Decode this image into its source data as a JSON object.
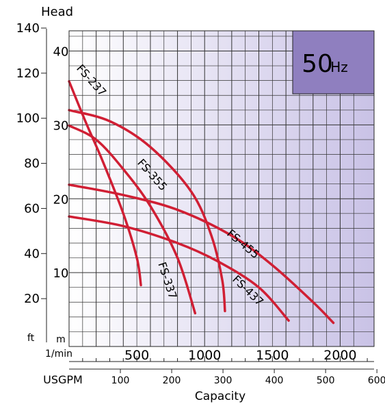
{
  "chart_data": {
    "type": "line",
    "badge": {
      "value": "50",
      "unit": "Hz",
      "color": "#8f7fbf"
    },
    "curve_color": "#d01f34",
    "x_axis_lpm": {
      "label": "1/min",
      "ticks": [
        "500",
        "1000",
        "1500",
        "2000"
      ],
      "range": [
        0,
        2250
      ]
    },
    "x_axis_usgpm": {
      "label": "USGPM",
      "ticks": [
        "100",
        "200",
        "300",
        "400",
        "500",
        "600"
      ]
    },
    "xlabel": "Capacity",
    "y_axis_ft": {
      "label": "ft",
      "title": "Head",
      "ticks": [
        "20",
        "40",
        "60",
        "80",
        "100",
        "120",
        "140"
      ],
      "range": [
        0,
        140
      ]
    },
    "y_axis_m": {
      "label": "m",
      "ticks": [
        "10",
        "20",
        "30",
        "40"
      ]
    },
    "series": [
      {
        "name": "FS-237",
        "points": [
          [
            0,
            35.9
          ],
          [
            120,
            30.5
          ],
          [
            250,
            25
          ],
          [
            400,
            18
          ],
          [
            500,
            12
          ],
          [
            530,
            8.3
          ]
        ]
      },
      {
        "name": "FS-337",
        "points": [
          [
            0,
            29.9
          ],
          [
            200,
            28
          ],
          [
            400,
            24
          ],
          [
            600,
            19
          ],
          [
            800,
            12
          ],
          [
            930,
            4.5
          ]
        ]
      },
      {
        "name": "FS-355",
        "points": [
          [
            0,
            32
          ],
          [
            300,
            30.5
          ],
          [
            600,
            27
          ],
          [
            900,
            21
          ],
          [
            1050,
            15
          ],
          [
            1130,
            9
          ],
          [
            1150,
            4.8
          ]
        ]
      },
      {
        "name": "FS-455",
        "points": [
          [
            0,
            21.9
          ],
          [
            400,
            20.5
          ],
          [
            800,
            18.5
          ],
          [
            1200,
            15
          ],
          [
            1500,
            11
          ],
          [
            1800,
            6
          ],
          [
            1950,
            3.2
          ]
        ]
      },
      {
        "name": "FS-437",
        "points": [
          [
            0,
            17.6
          ],
          [
            400,
            16.3
          ],
          [
            800,
            14
          ],
          [
            1100,
            11.5
          ],
          [
            1400,
            8
          ],
          [
            1620,
            3.5
          ]
        ]
      }
    ]
  }
}
